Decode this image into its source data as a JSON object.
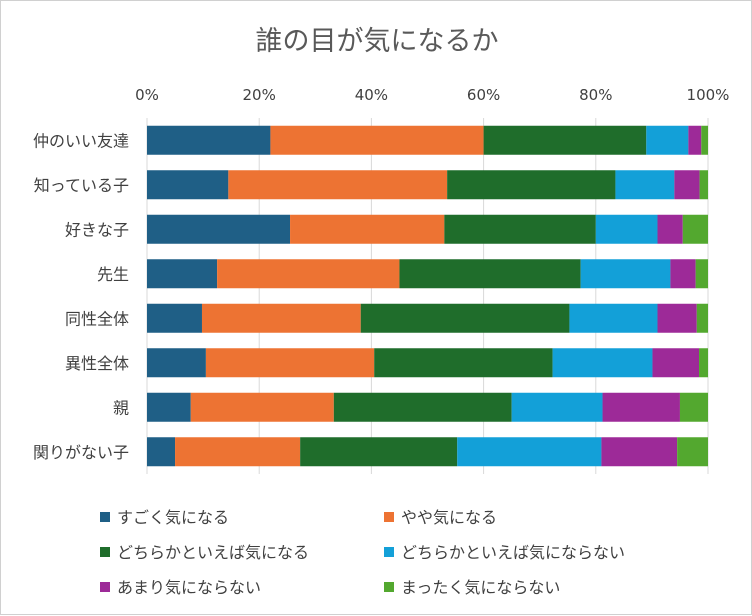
{
  "chart_data": {
    "type": "bar",
    "orientation": "horizontal",
    "stacked": "percent",
    "title": "誰の目が気になるか",
    "x_tick_labels": [
      "0%",
      "20%",
      "40%",
      "60%",
      "80%",
      "100%"
    ],
    "xlim": [
      0,
      100
    ],
    "grid": true,
    "legend_position": "bottom",
    "categories": [
      "仲のいい友達",
      "知っている子",
      "好きな子",
      "先生",
      "同性全体",
      "異性全体",
      "親",
      "関りがない子"
    ],
    "series": [
      {
        "name": "すごく気になる",
        "color": "#1f5f86",
        "values": [
          22,
          14.5,
          25.5,
          12.5,
          9.8,
          10.5,
          7.8,
          5
        ]
      },
      {
        "name": "やや気になる",
        "color": "#ed7333",
        "values": [
          38,
          39,
          27.5,
          32.5,
          28.3,
          30,
          25.5,
          22.3
        ]
      },
      {
        "name": "どちらかといえば気になる",
        "color": "#1f6d2b",
        "values": [
          29,
          30,
          27,
          32.3,
          37.2,
          31.8,
          31.7,
          28
        ]
      },
      {
        "name": "どちらかといえば気にならない",
        "color": "#13a0d8",
        "values": [
          7.5,
          10.5,
          11,
          16,
          15.7,
          17.8,
          16.2,
          25.7
        ]
      },
      {
        "name": "あまり気にならない",
        "color": "#9d2a98",
        "values": [
          2.3,
          4.5,
          4.5,
          4.5,
          7,
          8.3,
          13.8,
          13.5
        ]
      },
      {
        "name": "まったく気にならない",
        "color": "#53a82f",
        "values": [
          1.2,
          1.5,
          4.5,
          2.2,
          2,
          1.6,
          5,
          5.5
        ]
      }
    ]
  }
}
